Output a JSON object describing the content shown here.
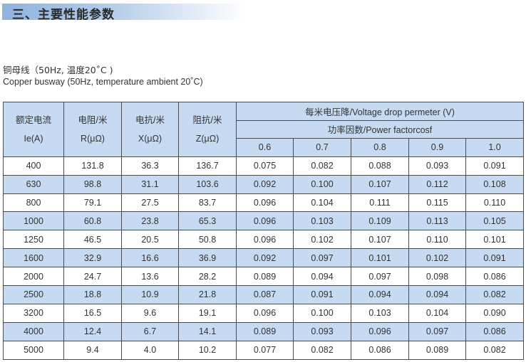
{
  "section_title": "三、主要性能参数",
  "subtitle_cn": "铜母线（50Hz, 温度20˚C )",
  "subtitle_en": "Copper busway (50Hz, temperature ambient 20˚C)",
  "colors": {
    "header_bg": "#c6daf1",
    "alt_row_bg": "#c6daf1",
    "title_gradient_start": "#8fb3de"
  },
  "table": {
    "headers": {
      "current": [
        "额定电流",
        "Ie(A)"
      ],
      "resistance": [
        "电阻/米",
        "R(μΩ)"
      ],
      "reactance": [
        "电抗/米",
        "X(μΩ)"
      ],
      "impedance": [
        "阻抗/米",
        "Z(μΩ)"
      ],
      "voltage_drop": "每米电压降/Voltage drop permeter (V)",
      "power_factor": "功率因数/Power factorcosf",
      "pf_values": [
        "0.6",
        "0.7",
        "0.8",
        "0.9",
        "1.0"
      ]
    },
    "rows": [
      [
        "400",
        "131.8",
        "36.3",
        "136.7",
        "0.075",
        "0.082",
        "0.088",
        "0.093",
        "0.091"
      ],
      [
        "630",
        "98.8",
        "31.1",
        "103.6",
        "0.092",
        "0.100",
        "0.107",
        "0.112",
        "0.108"
      ],
      [
        "800",
        "79.1",
        "27.5",
        "83.7",
        "0.096",
        "0.104",
        "0.111",
        "0.115",
        "0.110"
      ],
      [
        "1000",
        "60.8",
        "23.8",
        "65.3",
        "0.096",
        "0.103",
        "0.109",
        "0.113",
        "0.105"
      ],
      [
        "1250",
        "46.5",
        "20.5",
        "50.8",
        "0.096",
        "0.102",
        "0.107",
        "0.110",
        "0.101"
      ],
      [
        "1600",
        "32.9",
        "16.6",
        "36.9",
        "0.092",
        "0.097",
        "0.101",
        "0.102",
        "0.091"
      ],
      [
        "2000",
        "24.7",
        "13.6",
        "28.2",
        "0.089",
        "0.094",
        "0.097",
        "0.098",
        "0.086"
      ],
      [
        "2500",
        "18.8",
        "10.9",
        "21.8",
        "0.087",
        "0.091",
        "0.094",
        "0.094",
        "0.082"
      ],
      [
        "3200",
        "16.5",
        "9.6",
        "19.1",
        "0.096",
        "0.100",
        "0.103",
        "0.104",
        "0.090"
      ],
      [
        "4000",
        "12.4",
        "6.7",
        "14.1",
        "0.089",
        "0.093",
        "0.096",
        "0.097",
        "0.086"
      ],
      [
        "5000",
        "9.4",
        "4.0",
        "10.2",
        "0.077",
        "0.082",
        "0.086",
        "0.089",
        "0.082"
      ]
    ]
  }
}
